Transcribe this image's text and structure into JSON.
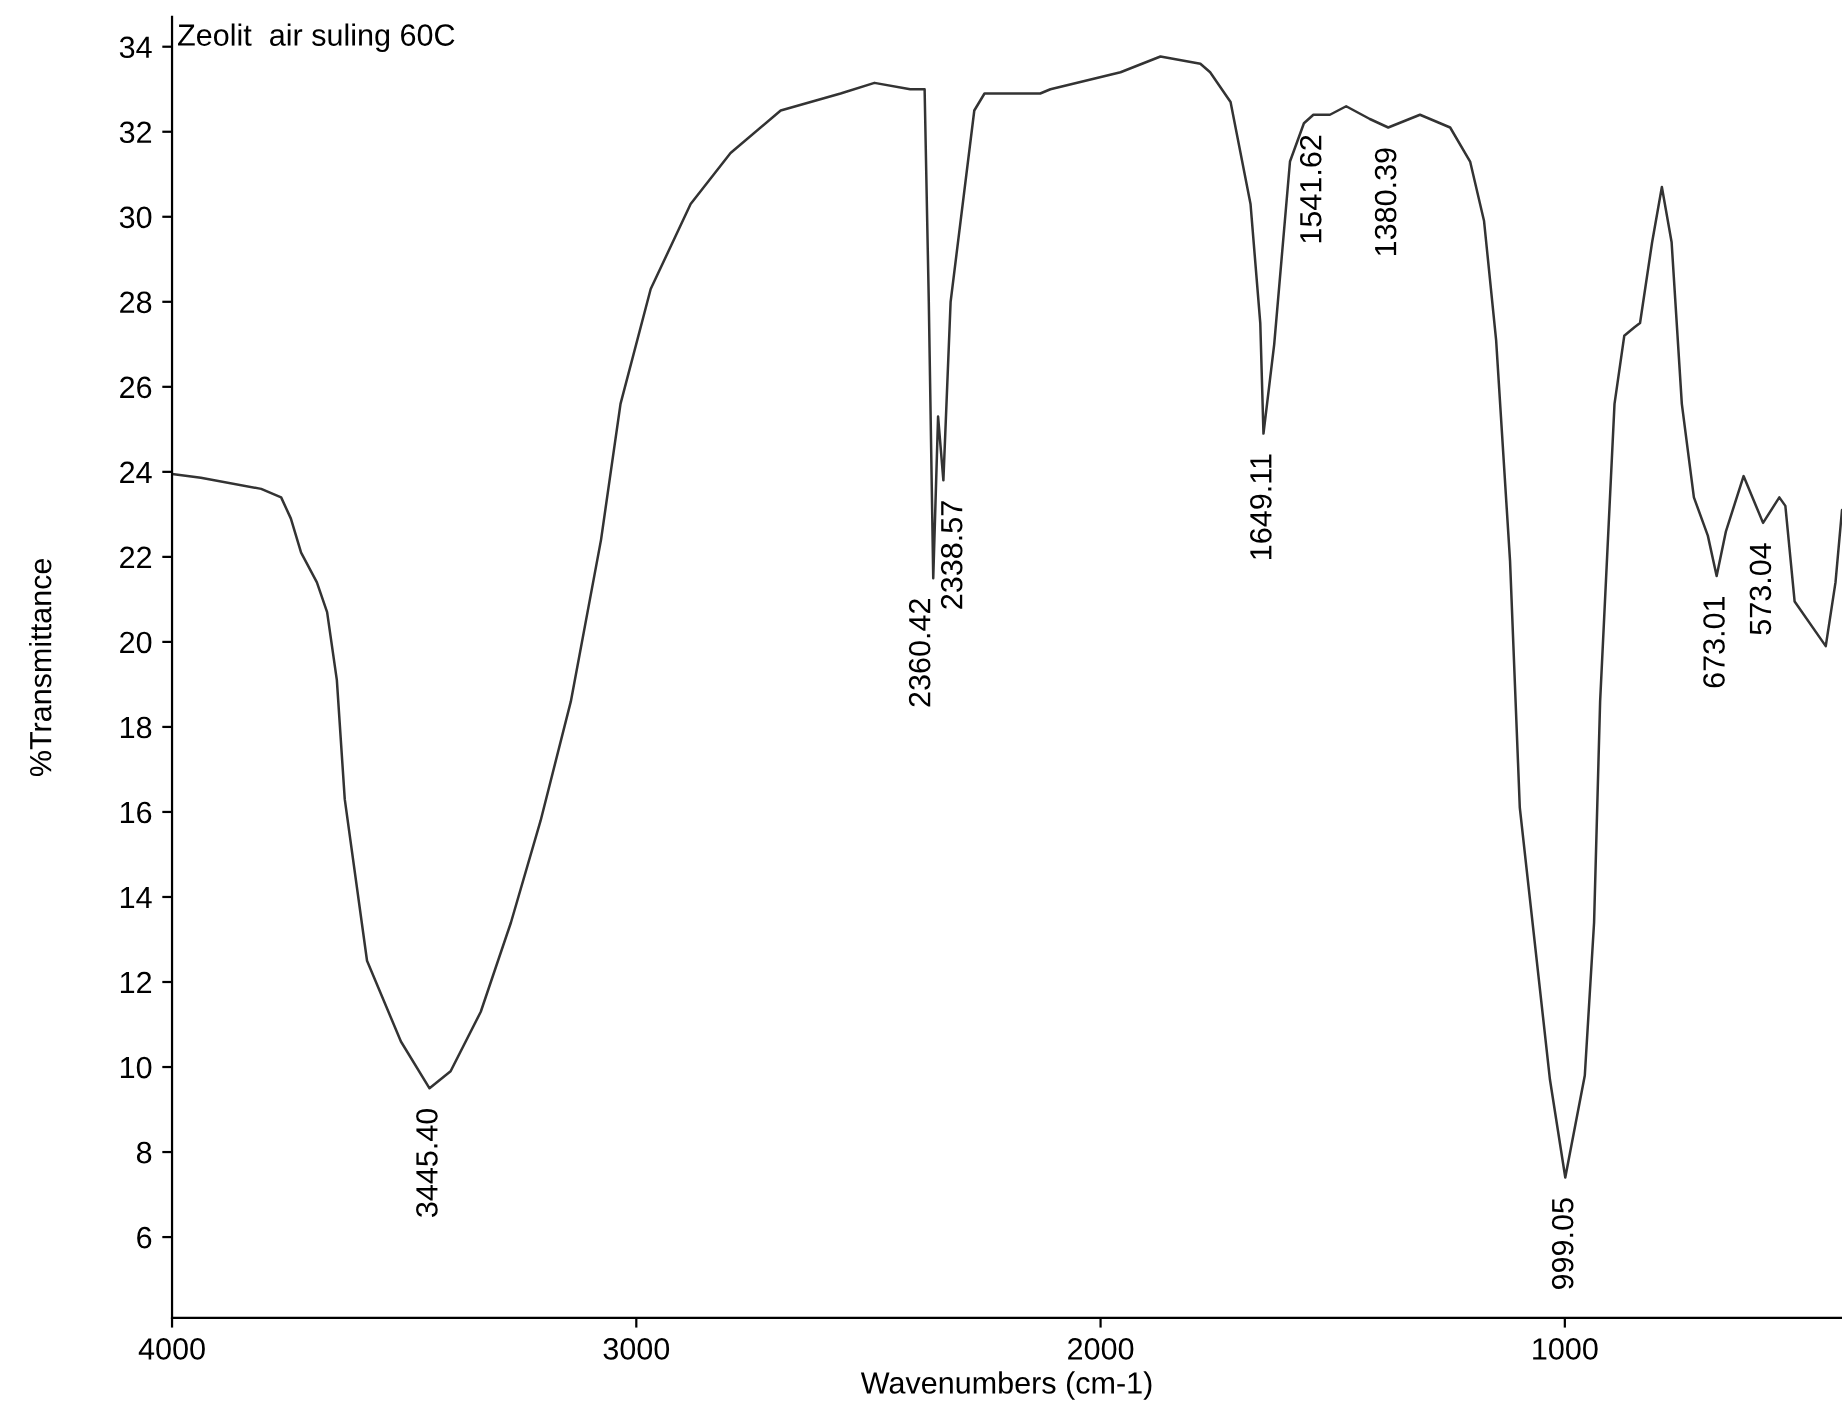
{
  "chart_data": {
    "type": "line",
    "title": "Zeolit  air suling 60C",
    "xlabel": "Wavenumbers (cm-1)",
    "ylabel": "%Transmittance",
    "xlim": [
      4000,
      403
    ],
    "ylim": [
      4.1,
      34.7
    ],
    "xticks": [
      4000,
      3000,
      2000,
      1000
    ],
    "yticks": [
      6,
      8,
      10,
      12,
      14,
      16,
      18,
      20,
      22,
      24,
      26,
      28,
      30,
      32,
      34
    ],
    "marker": "none",
    "line_style": "solid",
    "series": [
      {
        "color": "#333333",
        "x": [
          4000,
          3938,
          3808,
          3765,
          3744,
          3722,
          3688,
          3666,
          3645,
          3628,
          3580,
          3507,
          3445.4,
          3400,
          3335,
          3270,
          3206,
          3141,
          3076,
          3034,
          2969,
          2883,
          2797,
          2689,
          2560,
          2487,
          2410,
          2396,
          2379,
          2370,
          2360.42,
          2350,
          2338.57,
          2323,
          2272,
          2250,
          2130,
          2108,
          1957,
          1871,
          1785,
          1764,
          1720,
          1677,
          1656,
          1649.11,
          1626,
          1592,
          1562,
          1541.62,
          1506,
          1471,
          1420,
          1380.39,
          1312,
          1247,
          1204,
          1174,
          1148,
          1118,
          1097,
          1032,
          999.05,
          957,
          937,
          924,
          893,
          872,
          850,
          838,
          812,
          791,
          770,
          748,
          722,
          692,
          673.01,
          653,
          615,
          573.04,
          538,
          525,
          505,
          438,
          417,
          403
        ],
        "values": [
          23.95,
          23.86,
          23.6,
          23.4,
          22.9,
          22.1,
          21.4,
          20.7,
          19.1,
          16.3,
          12.5,
          10.6,
          9.5,
          9.9,
          11.3,
          13.4,
          15.8,
          18.6,
          22.4,
          25.6,
          28.3,
          30.3,
          31.5,
          32.5,
          32.9,
          33.15,
          33.0,
          33.0,
          33.0,
          28,
          21.5,
          25.3,
          23.8,
          28,
          32.5,
          32.9,
          32.9,
          33.0,
          33.4,
          33.77,
          33.6,
          33.4,
          32.7,
          30.3,
          27.5,
          24.9,
          27.0,
          31.3,
          32.2,
          32.4,
          32.4,
          32.6,
          32.3,
          32.1,
          32.4,
          32.1,
          31.3,
          29.9,
          27.1,
          21.9,
          16.1,
          9.7,
          7.4,
          9.8,
          13.4,
          18.6,
          25.6,
          27.2,
          27.4,
          27.5,
          29.4,
          30.7,
          29.4,
          25.6,
          23.4,
          22.5,
          21.55,
          22.6,
          23.9,
          22.8,
          23.4,
          23.2,
          20.95,
          19.9,
          21.4,
          23.1
        ]
      }
    ],
    "annotations": [
      {
        "text": "3445.40",
        "x": 3445.4,
        "y": 9.5
      },
      {
        "text": "2360.42",
        "x": 2360.42,
        "y": 21.5
      },
      {
        "text": "2338.57",
        "x": 2338.57,
        "y": 23.8
      },
      {
        "text": "1649.11",
        "x": 1649.11,
        "y": 24.9
      },
      {
        "text": "1541.62",
        "x": 1541.62,
        "y": 32.4
      },
      {
        "text": "1380.39",
        "x": 1380.39,
        "y": 32.1
      },
      {
        "text": "999.05",
        "x": 999.05,
        "y": 7.4
      },
      {
        "text": "673.01",
        "x": 673.01,
        "y": 21.55
      },
      {
        "text": "573.04",
        "x": 573.04,
        "y": 22.8
      }
    ]
  }
}
